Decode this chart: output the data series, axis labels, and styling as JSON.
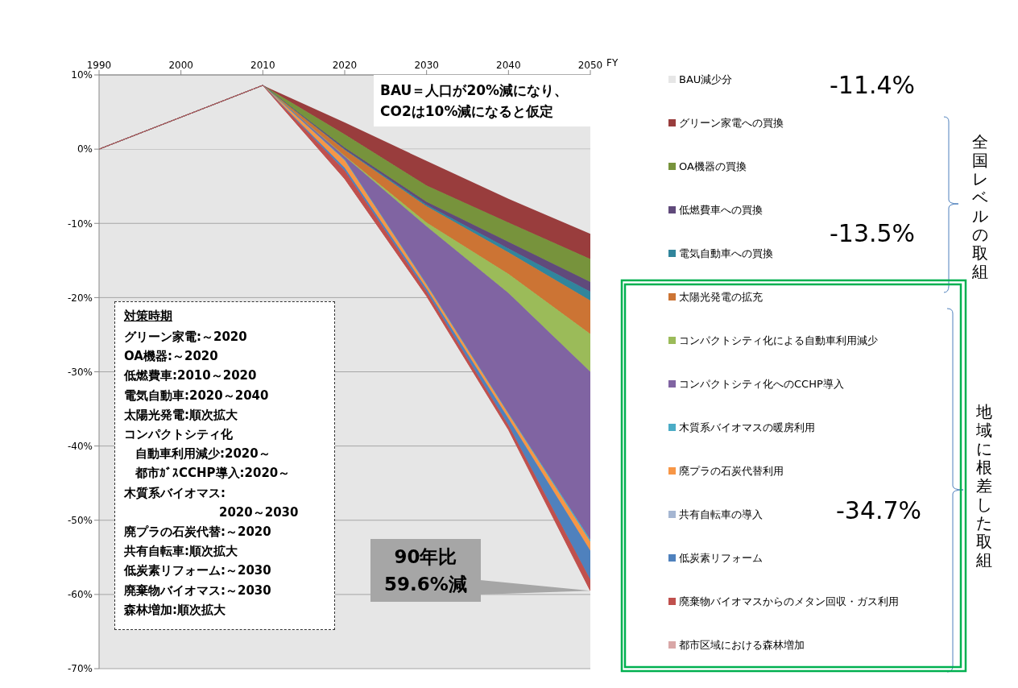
{
  "chart_data": {
    "type": "area",
    "stacked": true,
    "xlabel": "FY",
    "x": [
      1990,
      2000,
      2010,
      2020,
      2030,
      2040,
      2050
    ],
    "xlim": [
      1990,
      2050
    ],
    "xticks": [
      1990,
      2000,
      2010,
      2020,
      2030,
      2040,
      2050
    ],
    "ylim": [
      -70,
      10
    ],
    "yticks": [
      {
        "value": -70,
        "label": "-70%"
      },
      {
        "value": -60,
        "label": "-60%"
      },
      {
        "value": -50,
        "label": "-50%"
      },
      {
        "value": -40,
        "label": "-40%"
      },
      {
        "value": -30,
        "label": "-30%"
      },
      {
        "value": -20,
        "label": "-20%"
      },
      {
        "value": -10,
        "label": "-10%"
      },
      {
        "value": 0,
        "label": "0%"
      },
      {
        "value": 10,
        "label": "10%"
      }
    ],
    "grid": "y",
    "legend": "right",
    "series": [
      {
        "name": "BAU減少分",
        "color": "#e6e6e6",
        "values": [
          0,
          4.3,
          8.6,
          3.6,
          -1.6,
          -6.7,
          -11.4
        ]
      },
      {
        "name": "グリーン家電への買換",
        "color": "#993d3d",
        "values": [
          0,
          0,
          0,
          -1.6,
          -3.3,
          -3.2,
          -3.4
        ]
      },
      {
        "name": "OA機器の買換",
        "color": "#77933c",
        "values": [
          0,
          0,
          0,
          -1.8,
          -2.2,
          -2.6,
          -3.1
        ]
      },
      {
        "name": "低燃費車への買換",
        "color": "#604a7b",
        "values": [
          0,
          0,
          0,
          -0.2,
          -0.4,
          -0.9,
          -1.3
        ]
      },
      {
        "name": "電気自動車への買換",
        "color": "#31859c",
        "values": [
          0,
          0,
          0,
          -0.1,
          -0.2,
          -0.5,
          -1.2
        ]
      },
      {
        "name": "太陽光発電の拡充",
        "color": "#cc7434",
        "values": [
          0,
          0,
          0,
          -0.8,
          -2.2,
          -2.9,
          -4.5
        ]
      },
      {
        "name": "コンパクトシティ化による自動車利用減少",
        "color": "#9bbb59",
        "values": [
          0,
          0,
          0,
          -0.1,
          -0.5,
          -2.6,
          -5.1
        ]
      },
      {
        "name": "コンパクトシティ化へのCCHP導入",
        "color": "#8064a2",
        "values": [
          0,
          0,
          0,
          -0.4,
          -7.8,
          -16.2,
          -22.6
        ]
      },
      {
        "name": "木質系バイオマスの暖房利用",
        "color": "#4bacc6",
        "values": [
          0,
          0,
          0,
          -0.1,
          -0.1,
          -0.1,
          -0.3
        ]
      },
      {
        "name": "廃プラの石炭代替利用",
        "color": "#f79646",
        "values": [
          0,
          0,
          0,
          -1.0,
          -0.5,
          -0.6,
          -1.2
        ]
      },
      {
        "name": "共有自転車の導入",
        "color": "#a5b6d2",
        "values": [
          null,
          null,
          null,
          null,
          null,
          null,
          null
        ]
      },
      {
        "name": "低炭素リフォーム",
        "color": "#4f81bd",
        "values": [
          0,
          0,
          0,
          -0.4,
          -0.4,
          -0.9,
          -3.9
        ]
      },
      {
        "name": "廃棄物バイオマスからのメタン回収・ガス利用",
        "color": "#c0504d",
        "values": [
          0,
          0,
          0,
          -1.1,
          -0.6,
          -0.6,
          -1.5
        ]
      },
      {
        "name": "都市区域における森林増加",
        "color": "#d9a7a7",
        "values": [
          null,
          null,
          null,
          null,
          null,
          null,
          null
        ]
      }
    ],
    "annotations": [
      "BAU＝人口が20%減になり、CO2は10%減になると仮定",
      "対策時期",
      "グリーン家電:～2020",
      "OA機器:～2020",
      "低燃費車:2010～2020",
      "電気自動車:2020～2040",
      "太陽光発電:順次拡大",
      "コンパクトシティ化",
      "自動車利用減少:2020～",
      "都市ｶﾞｽCCHP導入:2020～",
      "木質系バイオマス:",
      "2020～2030",
      "廃プラの石炭代替:～2020",
      "共有自転車:順次拡大",
      "低炭素リフォーム:～2030",
      "廃棄物バイオマス:～2030",
      "森林増加:順次拡大",
      "90年比",
      "59.6%減",
      "-11.4%",
      "-13.5%",
      "-34.7%",
      "全国レベルの取組",
      "地域に根差した取組"
    ]
  }
}
